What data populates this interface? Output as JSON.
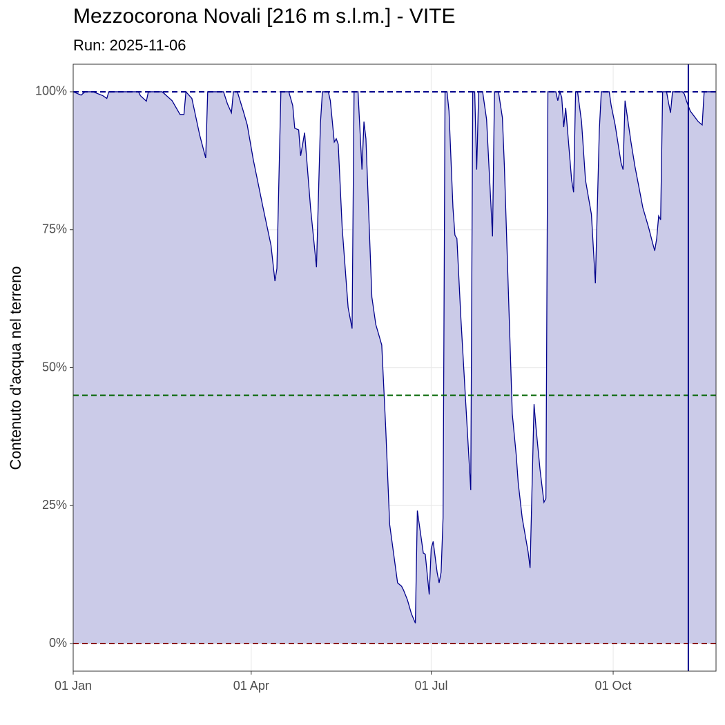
{
  "chart_data": {
    "type": "area",
    "title": "Mezzocorona Novali [216 m s.l.m.] - VITE",
    "subtitle": "Run: 2025-11-06",
    "y_label": "Contenuto d'acqua nel terreno",
    "x": [
      1,
      5,
      7,
      11,
      16,
      18,
      19,
      34,
      35,
      38,
      39,
      46,
      51,
      55,
      57,
      58,
      61,
      65,
      68,
      69,
      77,
      79,
      81,
      82,
      84,
      87,
      89,
      92,
      97,
      101,
      103,
      104,
      106,
      110,
      112,
      113,
      115,
      116,
      118,
      121,
      124,
      126,
      127,
      130,
      131,
      133,
      134,
      135,
      137,
      140,
      142,
      143,
      145,
      147,
      148,
      149,
      152,
      154,
      155,
      157,
      159,
      161,
      165,
      167,
      168,
      170,
      172,
      174,
      175,
      178,
      179,
      181,
      182,
      183,
      185,
      186,
      187,
      188,
      189,
      190,
      191,
      193,
      194,
      195,
      197,
      200,
      202,
      203,
      204,
      205,
      206,
      208,
      210,
      213,
      214,
      216,
      218,
      219,
      223,
      225,
      226,
      228,
      231,
      232,
      234,
      235,
      237,
      239,
      240,
      241,
      245,
      246,
      247,
      248,
      249,
      250,
      253,
      254,
      255,
      256,
      258,
      260,
      263,
      265,
      267,
      268,
      272,
      273,
      275,
      278,
      279,
      280,
      283,
      285,
      288,
      289,
      292,
      294,
      295,
      296,
      297,
      298,
      299,
      301,
      302,
      303,
      304,
      309,
      310,
      311,
      313,
      317,
      319,
      320,
      326
    ],
    "series": [
      {
        "name": "Contenuto d'acqua",
        "color": "#00008b",
        "fill": "#cbcbe8",
        "values": [
          100,
          99.4,
          100,
          100,
          99.3,
          98.8,
          100,
          100,
          99.3,
          98.3,
          100,
          100,
          98.4,
          95.9,
          95.9,
          100,
          98.8,
          92.1,
          88,
          100,
          100,
          97.8,
          96.2,
          100,
          100,
          96.5,
          94,
          87.8,
          79,
          72.2,
          65.7,
          68,
          100,
          100,
          97.5,
          93.4,
          93.1,
          88.4,
          92.6,
          79,
          68.2,
          94.3,
          100,
          100,
          98.4,
          90.9,
          91.5,
          90.5,
          75.3,
          60.9,
          57.1,
          100,
          100,
          85.9,
          94.6,
          91.5,
          62.8,
          57.8,
          56.6,
          54.1,
          39.1,
          21.6,
          11,
          10.4,
          9.7,
          7.9,
          5.4,
          3.7,
          24.1,
          16.4,
          16.2,
          8.9,
          17.2,
          18.5,
          12.9,
          11,
          12.9,
          22.8,
          100,
          100,
          96.5,
          79,
          74,
          73.4,
          59,
          40.3,
          27.8,
          100,
          100,
          85.9,
          100,
          100,
          95,
          73.8,
          100,
          100,
          95.3,
          86.5,
          41.6,
          34.1,
          29.1,
          22.8,
          16.6,
          13.7,
          43.4,
          39.1,
          31.6,
          25.6,
          26.3,
          100,
          100,
          98.4,
          100,
          99,
          93.6,
          97.1,
          84,
          81.8,
          100,
          100,
          94.6,
          84,
          77.8,
          65.3,
          93.1,
          100,
          100,
          97.5,
          94,
          87.1,
          85.9,
          98.4,
          90.9,
          86.5,
          80.9,
          79,
          75.3,
          72.5,
          71.2,
          73.4,
          77.5,
          76.8,
          100,
          100,
          98,
          96.2,
          100,
          100,
          99.6,
          98.4,
          96.5,
          94.6,
          94,
          100,
          100
        ]
      }
    ],
    "xlim": [
      1,
      326
    ],
    "xticks": [
      {
        "value": 1,
        "label": "01 Jan"
      },
      {
        "value": 91,
        "label": "01 Apr"
      },
      {
        "value": 182,
        "label": "01 Jul"
      },
      {
        "value": 274,
        "label": "01 Oct"
      }
    ],
    "ylim": [
      -5,
      105
    ],
    "yticks": [
      {
        "value": 0,
        "label": "0%"
      },
      {
        "value": 25,
        "label": "25%"
      },
      {
        "value": 50,
        "label": "50%"
      },
      {
        "value": 75,
        "label": "75%"
      },
      {
        "value": 100,
        "label": "100%"
      }
    ],
    "grid": true,
    "hlines": [
      {
        "value": 100,
        "color": "#00008b"
      },
      {
        "value": 45,
        "color": "#006400"
      },
      {
        "value": 0,
        "color": "#8b0000"
      }
    ],
    "vline": {
      "value": 312,
      "color": "#00008b"
    }
  }
}
